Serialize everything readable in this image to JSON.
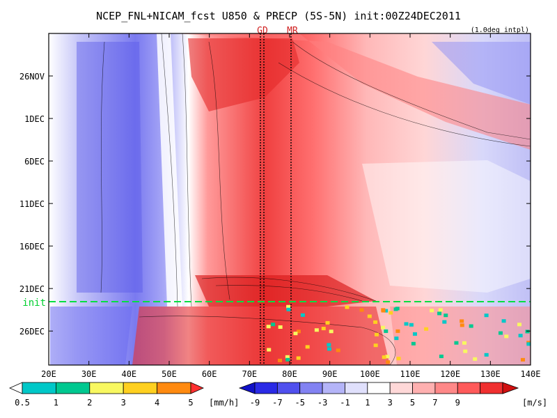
{
  "chart_data": {
    "type": "heatmap",
    "title": "NCEP_FNL+NICAM_fcst U850 & PRECP (5S-5N) init:00Z24DEC2011",
    "subtitle": "(1.0deg intpl)",
    "x_ticks": [
      "20E",
      "30E",
      "40E",
      "50E",
      "60E",
      "70E",
      "80E",
      "90E",
      "100E",
      "110E",
      "120E",
      "130E",
      "140E"
    ],
    "x_range_deg": [
      20,
      140
    ],
    "y_ticks": [
      "26NOV",
      "1DEC",
      "6DEC",
      "11DEC",
      "16DEC",
      "21DEC",
      "26DEC"
    ],
    "y_range_days_label": "Nov 21 2011 - Dec 30 2011",
    "markers": [
      {
        "label": "GD",
        "lon": 73
      },
      {
        "label": "MR",
        "lon": 80
      }
    ],
    "init_line": {
      "label": "init",
      "date": "24DEC"
    },
    "u850_colorbar": {
      "labels": [
        "-9",
        "-7",
        "-5",
        "-3",
        "-1",
        "1",
        "3",
        "5",
        "7",
        "9"
      ],
      "unit": "[m/s]",
      "colors": [
        "#1010c8",
        "#2a2ae6",
        "#5050ee",
        "#8282f2",
        "#b4b4f8",
        "#e0e0fc",
        "#ffffff",
        "#ffd8d8",
        "#ffb0b0",
        "#ff8888",
        "#ff5a5a",
        "#f03030",
        "#d01010"
      ]
    },
    "precip_colorbar": {
      "labels": [
        "0.5",
        "1",
        "2",
        "3",
        "4",
        "5"
      ],
      "unit": "[mm/h]",
      "colors": [
        "#ffffff",
        "#00c8c8",
        "#00c890",
        "#f8f860",
        "#ffd020",
        "#ff8a10",
        "#ff3030"
      ]
    },
    "regions": [
      {
        "name": "westerly band 60E-100E",
        "u850_ms": 6
      },
      {
        "name": "easterly band 25E-45E",
        "u850_ms": -5
      }
    ]
  }
}
